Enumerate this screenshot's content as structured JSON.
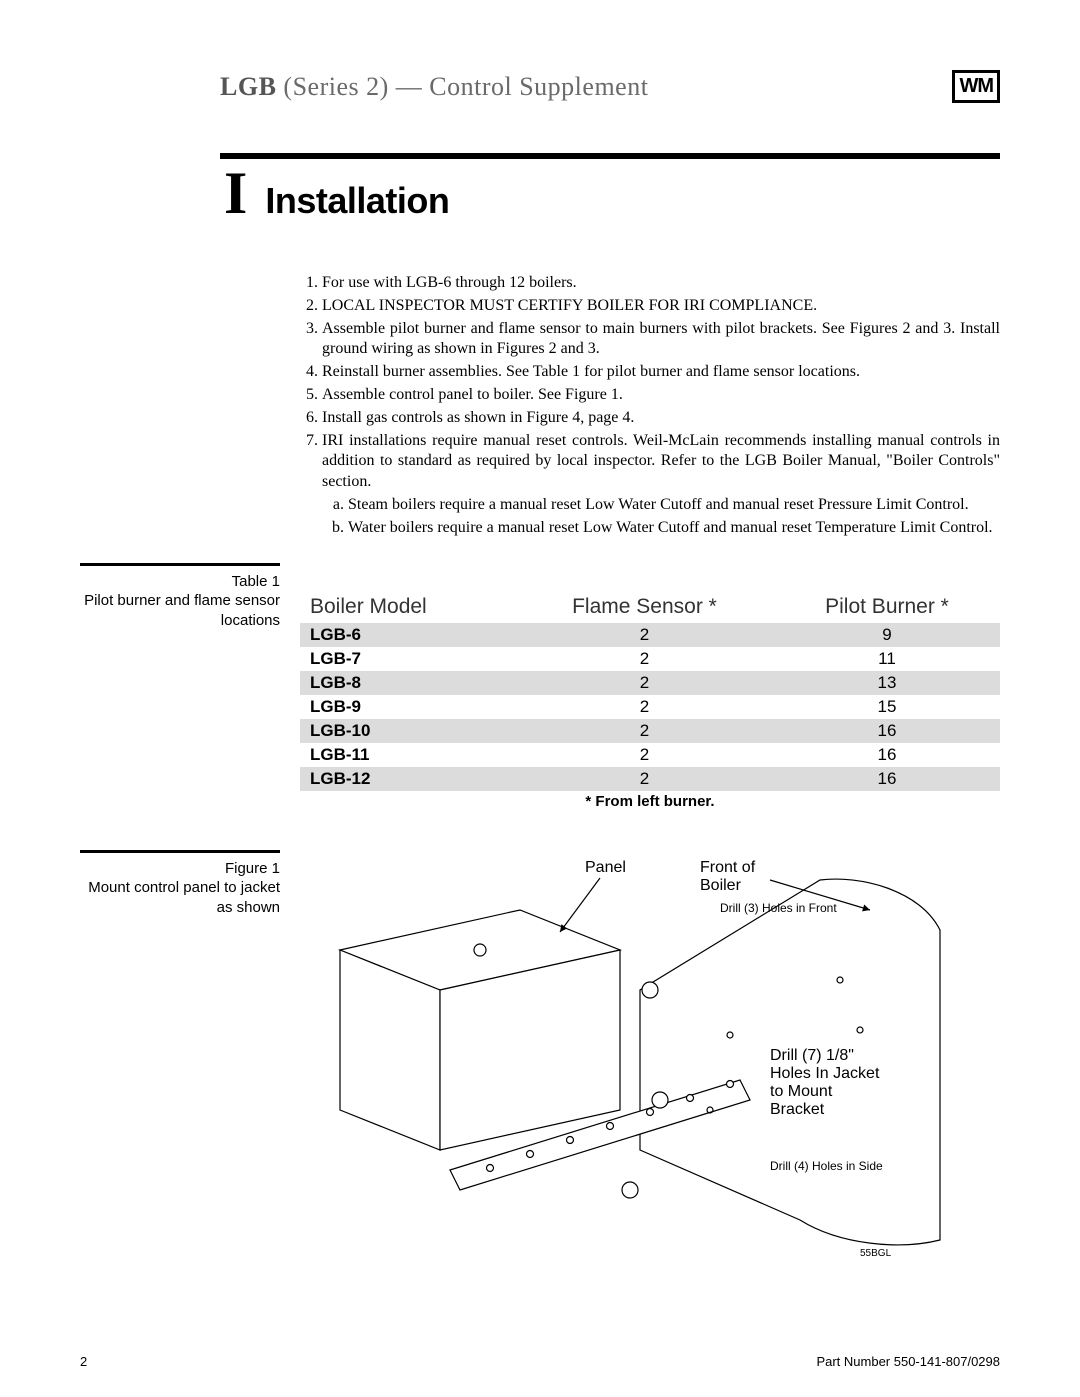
{
  "header": {
    "product": "LGB",
    "series": "(Series 2) — Control Supplement",
    "logo_text": "WM"
  },
  "section": {
    "number": "I",
    "title": "Installation"
  },
  "steps": [
    "For use with LGB-6 through 12 boilers.",
    "LOCAL INSPECTOR MUST CERTIFY BOILER FOR IRI COMPLIANCE.",
    "Assemble pilot burner and flame sensor to main burners with pilot brackets. See Figures 2 and 3. Install ground wiring as shown in Figures 2 and 3.",
    "Reinstall burner assemblies. See Table 1 for pilot burner and flame sensor locations.",
    "Assemble control panel to boiler. See Figure 1.",
    "Install gas controls as shown in Figure 4, page 4.",
    "IRI installations require manual reset controls. Weil-McLain recommends installing manual controls in addition to standard as required by local inspector. Refer to the LGB Boiler Manual, \"Boiler Controls\" section."
  ],
  "substeps7": [
    "Steam boilers require a manual reset Low Water Cutoff and manual reset Pressure Limit Control.",
    "Water boilers require a manual reset Low Water Cutoff and manual reset Temperature Limit Control."
  ],
  "table1": {
    "caption_label": "Table 1",
    "caption_text": "Pilot burner and flame sensor locations",
    "columns": [
      "Boiler Model",
      "Flame Sensor *",
      "Pilot Burner *"
    ],
    "rows": [
      {
        "model": "LGB-6",
        "flame": "2",
        "pilot": "9",
        "shade": true
      },
      {
        "model": "LGB-7",
        "flame": "2",
        "pilot": "11",
        "shade": false
      },
      {
        "model": "LGB-8",
        "flame": "2",
        "pilot": "13",
        "shade": true
      },
      {
        "model": "LGB-9",
        "flame": "2",
        "pilot": "15",
        "shade": false
      },
      {
        "model": "LGB-10",
        "flame": "2",
        "pilot": "16",
        "shade": true
      },
      {
        "model": "LGB-11",
        "flame": "2",
        "pilot": "16",
        "shade": false
      },
      {
        "model": "LGB-12",
        "flame": "2",
        "pilot": "16",
        "shade": true
      }
    ],
    "footnote": "* From left burner."
  },
  "figure1": {
    "caption_label": "Figure 1",
    "caption_text": "Mount control panel to jacket as shown",
    "labels": {
      "panel": "Panel",
      "front": "Front of Boiler",
      "drill3": "Drill (3) Holes in Front",
      "drill7": "Drill (7) 1/8\" Holes In Jacket to Mount Bracket",
      "drill4": "Drill (4) Holes in Side",
      "code": "55BGL"
    },
    "stroke": "#000000",
    "fill": "#ffffff",
    "label_font_size": 16,
    "small_font_size": 12
  },
  "footer": {
    "page_num": "2",
    "part": "Part Number 550-141-807/0298"
  }
}
